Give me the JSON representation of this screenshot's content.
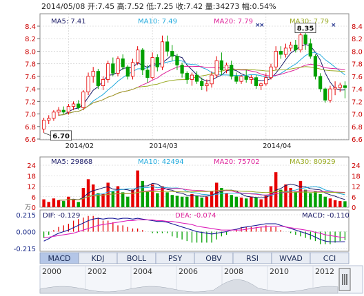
{
  "header": {
    "date": "2014/05/08",
    "open_label": "开",
    "open": "7.45",
    "high_label": "高",
    "high": "7.52",
    "low_label": "低",
    "low": "7.25",
    "close_label": "收",
    "close": "7.42",
    "volume_label": "量",
    "volume": "34273",
    "change_label": "幅",
    "change": "0.54%"
  },
  "colors": {
    "up": "#e60000",
    "down": "#00a000",
    "grid": "#c8c8c8",
    "ma5": "#1a1a66",
    "ma10": "#22aadd",
    "ma20": "#dd2299",
    "ma30": "#99aa22",
    "tab_active": "#b4c6e7",
    "tab": "#e8ecf4"
  },
  "chart_data": [
    {
      "type": "candlestick",
      "name": "price",
      "ylim": [
        6.6,
        8.4
      ],
      "y_ticks": [
        "8.4",
        "8.2",
        "8.0",
        "7.8",
        "7.6",
        "7.4",
        "7.2",
        "7.0",
        "6.8",
        "6.6"
      ],
      "x_ticks": [
        "2014/02",
        "2014/03",
        "2014/04"
      ],
      "ma_labels": {
        "ma5": "MA5: 7.41",
        "ma10": "MA10: 7.49",
        "ma20": "MA20: 7.79",
        "ma30": "MA30: 7.79"
      },
      "annotations": {
        "low": "6.70",
        "high": "8.35"
      },
      "ohlc": [
        [
          6.76,
          6.94,
          6.7,
          6.9
        ],
        [
          6.9,
          6.98,
          6.84,
          6.93
        ],
        [
          6.93,
          7.06,
          6.89,
          7.03
        ],
        [
          7.03,
          7.11,
          6.97,
          7.06
        ],
        [
          7.06,
          7.12,
          7.0,
          7.03
        ],
        [
          7.03,
          7.16,
          6.99,
          7.12
        ],
        [
          7.12,
          7.2,
          7.06,
          7.16
        ],
        [
          7.16,
          7.22,
          7.07,
          7.1
        ],
        [
          7.1,
          7.38,
          7.06,
          7.35
        ],
        [
          7.35,
          7.66,
          7.3,
          7.6
        ],
        [
          7.6,
          7.75,
          7.5,
          7.68
        ],
        [
          7.68,
          7.72,
          7.4,
          7.45
        ],
        [
          7.45,
          7.6,
          7.38,
          7.55
        ],
        [
          7.55,
          7.85,
          7.5,
          7.8
        ],
        [
          7.8,
          7.9,
          7.6,
          7.65
        ],
        [
          7.65,
          7.92,
          7.6,
          7.88
        ],
        [
          7.88,
          7.95,
          7.7,
          7.75
        ],
        [
          7.75,
          7.78,
          7.55,
          7.6
        ],
        [
          7.6,
          7.88,
          7.55,
          7.82
        ],
        [
          7.82,
          8.08,
          7.78,
          8.02
        ],
        [
          8.02,
          8.05,
          7.62,
          7.7
        ],
        [
          7.7,
          7.78,
          7.5,
          7.58
        ],
        [
          7.58,
          7.98,
          7.55,
          7.9
        ],
        [
          7.9,
          7.95,
          7.68,
          7.75
        ],
        [
          7.75,
          8.25,
          7.7,
          8.15
        ],
        [
          8.15,
          8.25,
          7.92,
          8.0
        ],
        [
          8.0,
          8.1,
          7.85,
          7.92
        ],
        [
          7.92,
          7.96,
          7.7,
          7.78
        ],
        [
          7.78,
          7.82,
          7.58,
          7.65
        ],
        [
          7.65,
          7.68,
          7.48,
          7.55
        ],
        [
          7.55,
          7.66,
          7.45,
          7.62
        ],
        [
          7.62,
          7.68,
          7.48,
          7.52
        ],
        [
          7.52,
          7.58,
          7.38,
          7.45
        ],
        [
          7.45,
          7.55,
          7.36,
          7.48
        ],
        [
          7.48,
          7.68,
          7.42,
          7.62
        ],
        [
          7.62,
          7.92,
          7.58,
          7.85
        ],
        [
          7.85,
          7.98,
          7.62,
          7.7
        ],
        [
          7.7,
          7.82,
          7.65,
          7.78
        ],
        [
          7.78,
          7.85,
          7.55,
          7.6
        ],
        [
          7.6,
          7.66,
          7.48,
          7.52
        ],
        [
          7.52,
          7.62,
          7.48,
          7.6
        ],
        [
          7.6,
          7.7,
          7.5,
          7.55
        ],
        [
          7.55,
          7.62,
          7.48,
          7.58
        ],
        [
          7.58,
          7.62,
          7.4,
          7.45
        ],
        [
          7.45,
          7.5,
          7.38,
          7.48
        ],
        [
          7.48,
          7.65,
          7.45,
          7.58
        ],
        [
          7.58,
          7.8,
          7.55,
          7.75
        ],
        [
          7.75,
          8.08,
          7.7,
          8.0
        ],
        [
          8.0,
          8.08,
          7.88,
          7.95
        ],
        [
          7.95,
          8.12,
          7.9,
          8.05
        ],
        [
          8.05,
          8.15,
          8.0,
          8.1
        ],
        [
          8.1,
          8.18,
          7.98,
          8.02
        ],
        [
          8.02,
          8.35,
          7.98,
          8.26
        ],
        [
          8.26,
          8.3,
          8.02,
          8.12
        ],
        [
          8.12,
          8.2,
          7.88,
          7.92
        ],
        [
          7.92,
          7.95,
          7.55,
          7.6
        ],
        [
          7.6,
          7.65,
          7.35,
          7.4
        ],
        [
          7.4,
          7.42,
          7.18,
          7.22
        ],
        [
          7.22,
          7.45,
          7.18,
          7.4
        ],
        [
          7.4,
          7.52,
          7.3,
          7.42
        ],
        [
          7.42,
          7.5,
          7.35,
          7.46
        ],
        [
          7.45,
          7.52,
          7.25,
          7.42
        ]
      ]
    },
    {
      "type": "bar",
      "name": "volume",
      "unit": "万",
      "ylim": [
        0,
        24
      ],
      "y_ticks": [
        "24",
        "18",
        "12",
        "6",
        "0"
      ],
      "ma_labels": {
        "ma5": "MA5: 29868",
        "ma10": "MA10: 42494",
        "ma20": "MA20: 75702",
        "ma30": "MA30: 80929"
      },
      "values": [
        4.5,
        3.0,
        5.0,
        4.0,
        3.5,
        6.0,
        4.5,
        3.0,
        11.0,
        16.0,
        13.0,
        8.0,
        7.5,
        14.0,
        9.0,
        12.0,
        8.5,
        6.0,
        10.0,
        21.0,
        15.0,
        9.0,
        13.0,
        8.0,
        12.0,
        8.5,
        7.0,
        6.5,
        6.0,
        6.0,
        7.5,
        6.5,
        5.5,
        6.0,
        9.0,
        14.0,
        11.0,
        8.0,
        7.0,
        6.0,
        5.5,
        5.0,
        6.0,
        5.5,
        4.5,
        7.0,
        12.0,
        20.0,
        10.0,
        13.0,
        11.0,
        9.0,
        15.0,
        10.0,
        8.0,
        9.0,
        7.5,
        6.0,
        5.0,
        4.0,
        3.5,
        3.4
      ]
    },
    {
      "type": "line",
      "name": "macd",
      "ylim": [
        -0.215,
        0.215
      ],
      "y_ticks": [
        "0.215",
        "0.000",
        "-0.215"
      ],
      "labels": {
        "dif": "DIF: -0.129",
        "dea": "DEA: -0.074",
        "macd": "MACD: -0.110"
      },
      "dif": [
        -0.12,
        -0.09,
        -0.05,
        -0.02,
        0.0,
        0.02,
        0.05,
        0.08,
        0.11,
        0.14,
        0.16,
        0.17,
        0.16,
        0.17,
        0.17,
        0.16,
        0.17,
        0.17,
        0.16,
        0.17,
        0.16,
        0.15,
        0.14,
        0.13,
        0.13,
        0.12,
        0.1,
        0.08,
        0.06,
        0.04,
        0.02,
        0.0,
        -0.01,
        -0.02,
        -0.03,
        -0.02,
        -0.01,
        0.0,
        0.02,
        0.03,
        0.05,
        0.06,
        0.07,
        0.08,
        0.09,
        0.1,
        0.1,
        0.1,
        0.08,
        0.06,
        0.04,
        0.02,
        0.0,
        -0.02,
        -0.04,
        -0.07,
        -0.1,
        -0.12,
        -0.13,
        -0.13,
        -0.13,
        -0.129
      ],
      "dea": [
        -0.08,
        -0.07,
        -0.06,
        -0.05,
        -0.04,
        -0.03,
        -0.02,
        0.0,
        0.02,
        0.04,
        0.06,
        0.08,
        0.09,
        0.1,
        0.11,
        0.12,
        0.13,
        0.14,
        0.14,
        0.15,
        0.15,
        0.15,
        0.15,
        0.14,
        0.14,
        0.13,
        0.13,
        0.12,
        0.11,
        0.1,
        0.09,
        0.07,
        0.06,
        0.05,
        0.04,
        0.03,
        0.02,
        0.02,
        0.02,
        0.02,
        0.02,
        0.03,
        0.04,
        0.05,
        0.06,
        0.06,
        0.07,
        0.07,
        0.07,
        0.06,
        0.05,
        0.04,
        0.03,
        0.02,
        0.01,
        -0.01,
        -0.02,
        -0.04,
        -0.05,
        -0.06,
        -0.07,
        -0.074
      ]
    }
  ],
  "tabs": [
    "MACD",
    "KDJ",
    "BOLL",
    "PSY",
    "OBV",
    "RSI",
    "WVAD",
    "CCI"
  ],
  "timeline": {
    "years": [
      "2000",
      "2002",
      "2004",
      "2006",
      "2008",
      "2010",
      "2012"
    ]
  }
}
